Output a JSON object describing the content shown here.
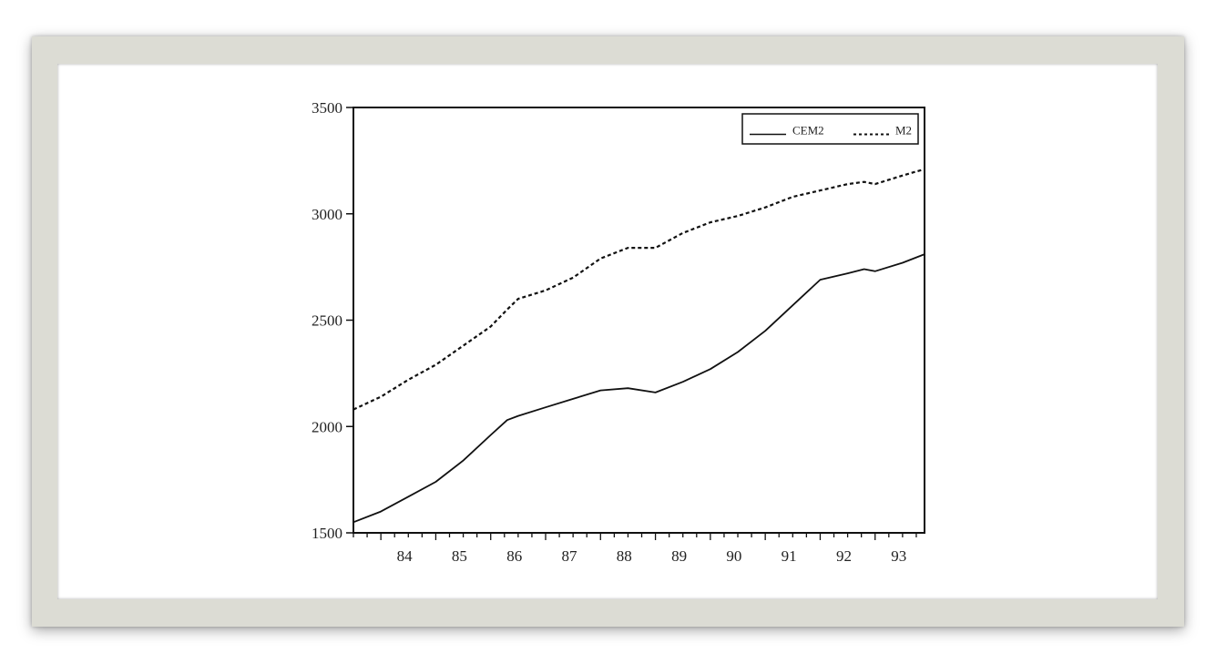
{
  "chart_data": {
    "type": "line",
    "title": "",
    "xlabel": "",
    "ylabel": "",
    "xlim": [
      83.5,
      93.9
    ],
    "ylim": [
      1500,
      3500
    ],
    "yticks": [
      1500,
      2000,
      2500,
      3000,
      3500
    ],
    "ytick_labels": [
      "1500",
      "2000",
      "2500",
      "3000",
      "3500"
    ],
    "xticks": [
      84,
      85,
      86,
      87,
      88,
      89,
      90,
      91,
      92,
      93
    ],
    "xtick_labels": [
      "84",
      "85",
      "86",
      "87",
      "88",
      "89",
      "90",
      "91",
      "92",
      "93"
    ],
    "grid": false,
    "legend_position": "top-right",
    "series": [
      {
        "name": "CEM2",
        "style": "solid",
        "x": [
          83.5,
          84.0,
          84.5,
          85.0,
          85.5,
          86.0,
          86.3,
          86.5,
          87.0,
          87.5,
          88.0,
          88.5,
          89.0,
          89.5,
          90.0,
          90.5,
          91.0,
          91.5,
          92.0,
          92.5,
          92.8,
          93.0,
          93.5,
          93.9
        ],
        "y": [
          1550,
          1600,
          1670,
          1740,
          1840,
          1960,
          2030,
          2050,
          2090,
          2130,
          2170,
          2180,
          2160,
          2210,
          2270,
          2350,
          2450,
          2570,
          2690,
          2720,
          2740,
          2730,
          2770,
          2810
        ]
      },
      {
        "name": "M2",
        "style": "dashed",
        "x": [
          83.5,
          84.0,
          84.5,
          85.0,
          85.5,
          86.0,
          86.3,
          86.5,
          87.0,
          87.5,
          88.0,
          88.5,
          89.0,
          89.5,
          90.0,
          90.5,
          91.0,
          91.5,
          92.0,
          92.5,
          92.8,
          93.0,
          93.5,
          93.9
        ],
        "y": [
          2080,
          2140,
          2220,
          2290,
          2380,
          2470,
          2550,
          2600,
          2640,
          2700,
          2790,
          2840,
          2840,
          2910,
          2960,
          2990,
          3030,
          3080,
          3110,
          3140,
          3150,
          3140,
          3180,
          3210
        ]
      }
    ]
  }
}
